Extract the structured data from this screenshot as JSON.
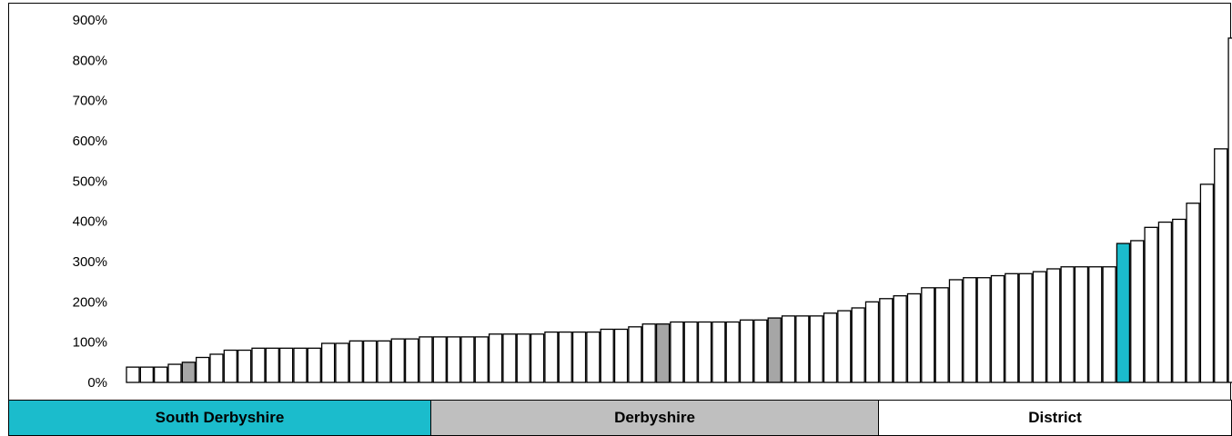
{
  "colors": {
    "south_derbyshire": "#1bbccc",
    "derbyshire": "#a6a6a6",
    "district": "#ffffff",
    "legend_county_bg": "#bfbfbf"
  },
  "legend": {
    "south_derbyshire": "South Derbyshire",
    "derbyshire": "Derbyshire",
    "district": "District"
  },
  "chart_data": {
    "type": "bar",
    "title": "",
    "xlabel": "",
    "ylabel": "",
    "ylim": [
      0,
      900
    ],
    "y_ticks": [
      "0%",
      "100%",
      "200%",
      "300%",
      "400%",
      "500%",
      "600%",
      "700%",
      "800%",
      "900%"
    ],
    "y_tick_values": [
      0,
      100,
      200,
      300,
      400,
      500,
      600,
      700,
      800,
      900
    ],
    "grid": false,
    "legend_position": "bottom",
    "values": [
      38,
      38,
      38,
      45,
      50,
      62,
      70,
      80,
      80,
      85,
      85,
      85,
      85,
      85,
      97,
      97,
      103,
      103,
      103,
      108,
      108,
      113,
      113,
      113,
      113,
      113,
      120,
      120,
      120,
      120,
      125,
      125,
      125,
      125,
      132,
      132,
      138,
      145,
      145,
      150,
      150,
      150,
      150,
      150,
      155,
      155,
      160,
      165,
      165,
      165,
      172,
      178,
      185,
      200,
      208,
      215,
      220,
      235,
      235,
      255,
      260,
      260,
      265,
      270,
      270,
      275,
      282,
      287,
      287,
      287,
      287,
      345,
      352,
      385,
      398,
      405,
      445,
      492,
      580,
      855
    ],
    "categories_type": [
      "district",
      "district",
      "district",
      "district",
      "derbyshire",
      "district",
      "district",
      "district",
      "district",
      "district",
      "district",
      "district",
      "district",
      "district",
      "district",
      "district",
      "district",
      "district",
      "district",
      "district",
      "district",
      "district",
      "district",
      "district",
      "district",
      "district",
      "district",
      "district",
      "district",
      "district",
      "district",
      "district",
      "district",
      "district",
      "district",
      "district",
      "district",
      "district",
      "derbyshire",
      "district",
      "district",
      "district",
      "district",
      "district",
      "district",
      "district",
      "derbyshire",
      "district",
      "district",
      "district",
      "district",
      "district",
      "district",
      "district",
      "district",
      "district",
      "district",
      "district",
      "district",
      "district",
      "district",
      "district",
      "district",
      "district",
      "district",
      "district",
      "district",
      "district",
      "district",
      "district",
      "district",
      "south_derbyshire",
      "district",
      "district",
      "district",
      "district",
      "district",
      "district",
      "district",
      "district"
    ]
  }
}
